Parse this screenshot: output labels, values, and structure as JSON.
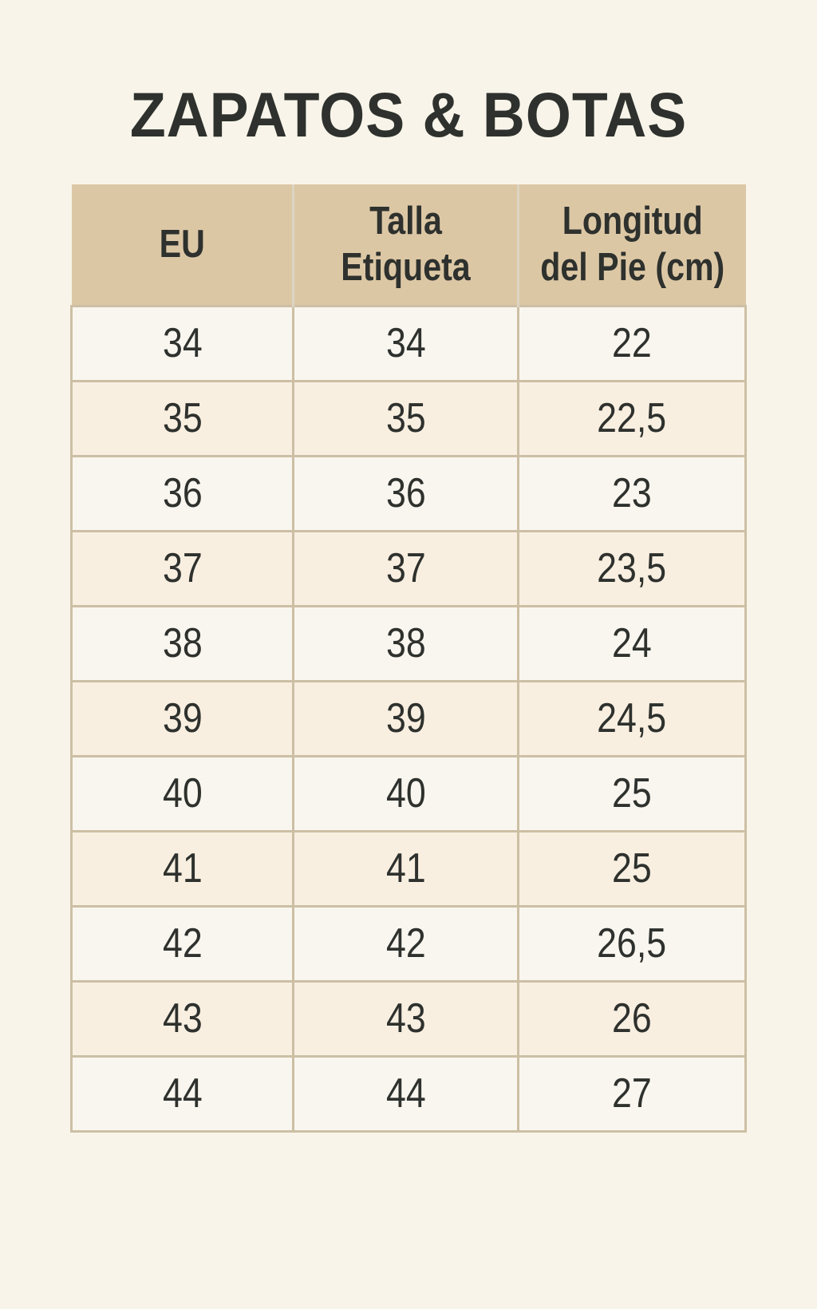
{
  "title": "ZAPATOS & BOTAS",
  "colors": {
    "page_bg": "#f8f4e9",
    "header_bg": "#dcc7a5",
    "row_light": "#f9f6ef",
    "row_peach": "#f9efe1",
    "grid_border": "#ccbfa4",
    "header_divider": "#ddd4c2",
    "text": "#2e312d"
  },
  "chart_data": {
    "type": "table",
    "title": "ZAPATOS & BOTAS",
    "columns": [
      "EU",
      "Talla Etiqueta",
      "Longitud del Pie (cm)"
    ],
    "column_lines": [
      [
        "EU"
      ],
      [
        "Talla",
        "Etiqueta"
      ],
      [
        "Longitud",
        "del Pie (cm)"
      ]
    ],
    "rows": [
      [
        "34",
        "34",
        "22"
      ],
      [
        "35",
        "35",
        "22,5"
      ],
      [
        "36",
        "36",
        "23"
      ],
      [
        "37",
        "37",
        "23,5"
      ],
      [
        "38",
        "38",
        "24"
      ],
      [
        "39",
        "39",
        "24,5"
      ],
      [
        "40",
        "40",
        "25"
      ],
      [
        "41",
        "41",
        "25"
      ],
      [
        "42",
        "42",
        "26,5"
      ],
      [
        "43",
        "43",
        "26"
      ],
      [
        "44",
        "44",
        "27"
      ]
    ]
  }
}
